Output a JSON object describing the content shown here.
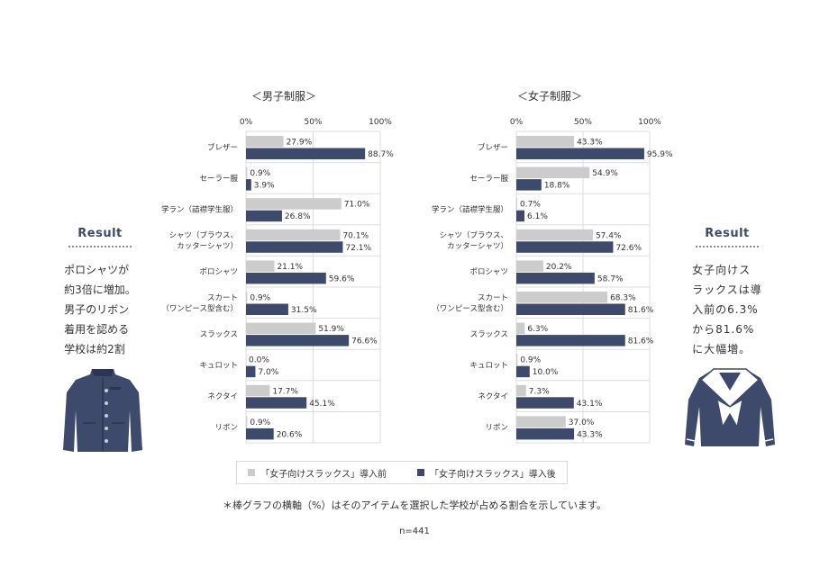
{
  "colors": {
    "before": "#cccccc",
    "after": "#3d4a6b",
    "grid": "#dddddd",
    "uniform": "#3d4a6b"
  },
  "left_note": {
    "title": "Result",
    "text": "ポロシャツが\n約3倍に増加。\n男子のリボン\n着用を認める\n学校は約2割"
  },
  "right_note": {
    "title": "Result",
    "text": "女子向けス\nラックスは導\n入前の6.3%\nから81.6%\nに大幅増。"
  },
  "legend": {
    "before_label": "「女子向けスラックス」導入前",
    "after_label": "「女子向けスラックス」導入後"
  },
  "footnote": "＊棒グラフの横軸（%）はそのアイテムを選択した学校が占める割合を示しています。",
  "sample": "n=441",
  "icons": {
    "left": "boys-gakuran-uniform-icon",
    "right": "girls-sailor-uniform-icon"
  },
  "chart_data": [
    {
      "type": "bar",
      "orientation": "horizontal",
      "title": "＜男子制服＞",
      "xlim": [
        0,
        100
      ],
      "ticks": [
        "0%",
        "50%",
        "100%"
      ],
      "categories": [
        "ブレザー",
        "セーラー服",
        "学ラン（詰襟学生服）",
        "シャツ（ブラウス、\nカッターシャツ）",
        "ポロシャツ",
        "スカート\n（ワンピース型含む）",
        "スラックス",
        "キュロット",
        "ネクタイ",
        "リボン"
      ],
      "series": [
        {
          "name": "「女子向けスラックス」導入前",
          "values": [
            27.9,
            0.9,
            71.0,
            70.1,
            21.1,
            0.9,
            51.9,
            0.0,
            17.7,
            0.9
          ]
        },
        {
          "name": "「女子向けスラックス」導入後",
          "values": [
            88.7,
            3.9,
            26.8,
            72.1,
            59.6,
            31.5,
            76.6,
            7.0,
            45.1,
            20.6
          ]
        }
      ]
    },
    {
      "type": "bar",
      "orientation": "horizontal",
      "title": "＜女子制服＞",
      "xlim": [
        0,
        100
      ],
      "ticks": [
        "0%",
        "50%",
        "100%"
      ],
      "categories": [
        "ブレザー",
        "セーラー服",
        "学ラン（詰襟学生服）",
        "シャツ（ブラウス、\nカッターシャツ）",
        "ポロシャツ",
        "スカート\n（ワンピース型含む）",
        "スラックス",
        "キュロット",
        "ネクタイ",
        "リボン"
      ],
      "series": [
        {
          "name": "「女子向けスラックス」導入前",
          "values": [
            43.3,
            54.9,
            0.7,
            57.4,
            20.2,
            68.3,
            6.3,
            0.9,
            7.3,
            37.0
          ]
        },
        {
          "name": "「女子向けスラックス」導入後",
          "values": [
            95.9,
            18.8,
            6.1,
            72.6,
            58.7,
            81.6,
            81.6,
            10.0,
            43.1,
            43.3
          ]
        }
      ]
    }
  ]
}
